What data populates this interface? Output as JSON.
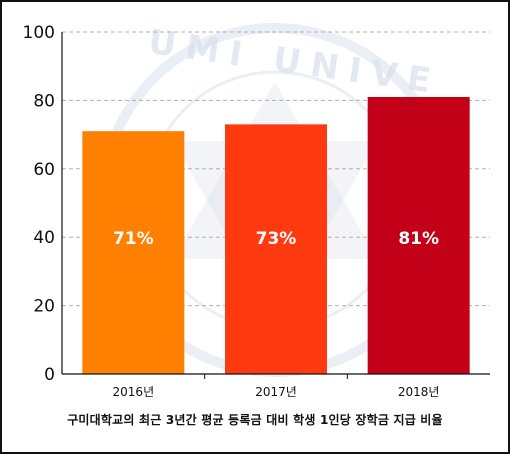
{
  "caption": "구미대학교의 최근 3년간 평균 등록금 대비 학생 1인당 장학금 지급 비율",
  "colors": {
    "bar_2016": "#FF8000",
    "bar_2017": "#FF3A10",
    "bar_2018": "#C20018",
    "grid": "#b0b0b0",
    "axis": "#111111",
    "watermark": "#d9e0ec"
  },
  "watermark_text": "UMI UNIVE",
  "chart_data": {
    "type": "bar",
    "categories": [
      "2016년",
      "2017년",
      "2018년"
    ],
    "values": [
      71,
      73,
      81
    ],
    "data_labels": [
      "71%",
      "73%",
      "81%"
    ],
    "yticks": [
      0,
      20,
      40,
      60,
      80,
      100
    ],
    "ylim": [
      0,
      100
    ],
    "grid": true,
    "legend": "none",
    "title": "",
    "xlabel": "",
    "ylabel": ""
  }
}
